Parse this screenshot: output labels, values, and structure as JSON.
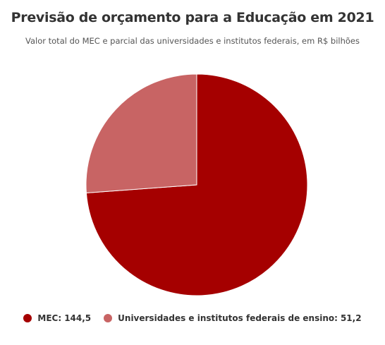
{
  "chart_data": {
    "type": "pie",
    "title": "Previsão de orçamento para a Educação em 2021",
    "subtitle": "Valor total do MEC e parcial das universidades e institutos federais, em R$ bilhões",
    "categories": [
      "MEC",
      "Universidades e institutos federais de ensino"
    ],
    "values": [
      144.5,
      51.2
    ],
    "value_labels": [
      "144,5",
      "51,2"
    ],
    "colors": [
      "#a50000",
      "#c86464"
    ]
  }
}
